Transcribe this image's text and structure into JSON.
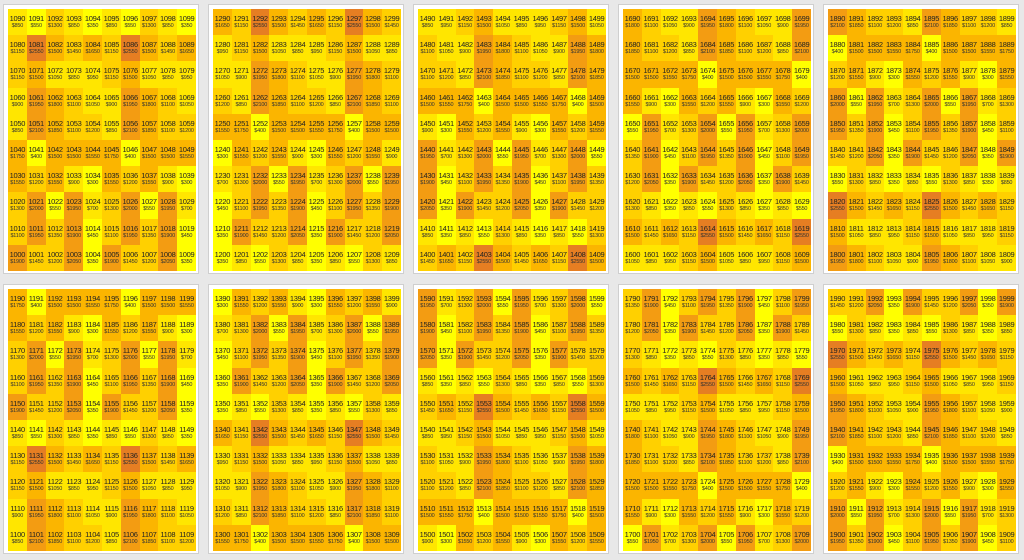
{
  "page": {
    "title": "",
    "legend": {
      "colors": {
        "low": "#ffff00",
        "mid": "#ffc800",
        "high": "#f39c12",
        "peak": "#e67e22"
      }
    }
  },
  "chart_data": {
    "type": "heatmap",
    "layout": "2 rows x 5 blocks, each block 10x10 seats",
    "blocks": [
      {
        "name": "1000-1099",
        "start": 1000
      },
      {
        "name": "1200-1299",
        "start": 1200
      },
      {
        "name": "1400-1499",
        "start": 1400
      },
      {
        "name": "1600-1699",
        "start": 1600
      },
      {
        "name": "1800-1899",
        "start": 1800
      },
      {
        "name": "1100-1199",
        "start": 1100
      },
      {
        "name": "1300-1399",
        "start": 1300
      },
      {
        "name": "1500-1599",
        "start": 1500
      },
      {
        "name": "1700-1799",
        "start": 1700
      },
      {
        "name": "1900-1999",
        "start": 1900
      }
    ],
    "prices": [
      [
        850,
        2000,
        1300,
        850,
        350,
        650,
        550,
        650,
        850,
        1600
      ],
      [
        2250,
        1450,
        2000,
        1150,
        1600,
        1500,
        1550,
        1650,
        2000,
        2550
      ],
      [
        950,
        1600,
        1500,
        1800,
        850,
        850,
        1150,
        1800,
        1050,
        1400
      ],
      [
        550,
        1800,
        1400,
        1050,
        2250,
        1950,
        1900,
        1100,
        1250,
        900
      ],
      [
        1100,
        950,
        850,
        1500,
        1850,
        1500,
        1200,
        2100,
        2100,
        1650
      ],
      [
        2150,
        400,
        1400,
        1500,
        1300,
        1750,
        400,
        1500,
        900,
        1550
      ],
      [
        1550,
        900,
        300,
        1100,
        1200,
        1200,
        900,
        1900,
        1550,
        1100
      ],
      [
        1800,
        1300,
        900,
        550,
        2250,
        700,
        1700,
        2000,
        1900,
        1950
      ],
      [
        1950,
        1700,
        1900,
        450,
        1100,
        550,
        1350,
        1600,
        450,
        1850
      ],
      [
        2250,
        350,
        2250,
        1450,
        950,
        2050,
        1450,
        1900,
        1200,
        1200
      ]
    ],
    "color_scale": [
      "#ffff00",
      "#ffe600",
      "#ffd000",
      "#fbb500",
      "#f39c12",
      "#e67e22"
    ],
    "price_prefix": "$"
  }
}
